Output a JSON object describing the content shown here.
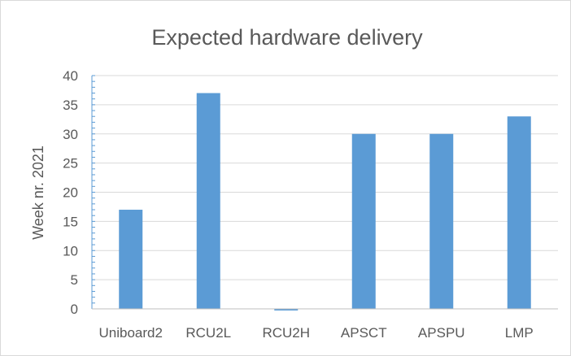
{
  "chart_data": {
    "type": "bar",
    "title": "Expected hardware delivery",
    "xlabel": "",
    "ylabel": "Week nr. 2021",
    "categories": [
      "Uniboard2",
      "RCU2L",
      "RCU2H",
      "APSCT",
      "APSPU",
      "LMP"
    ],
    "values": [
      17,
      37,
      -0.2,
      30,
      30,
      33
    ],
    "ylim": [
      0,
      40
    ],
    "yticks": [
      0,
      5,
      10,
      15,
      20,
      25,
      30,
      35,
      40
    ],
    "grid": true,
    "legend": "none",
    "colors": {
      "bar": "#5b9bd5",
      "grid": "#d9d9d9",
      "text": "#595959",
      "axis": "#bfbfbf"
    }
  }
}
